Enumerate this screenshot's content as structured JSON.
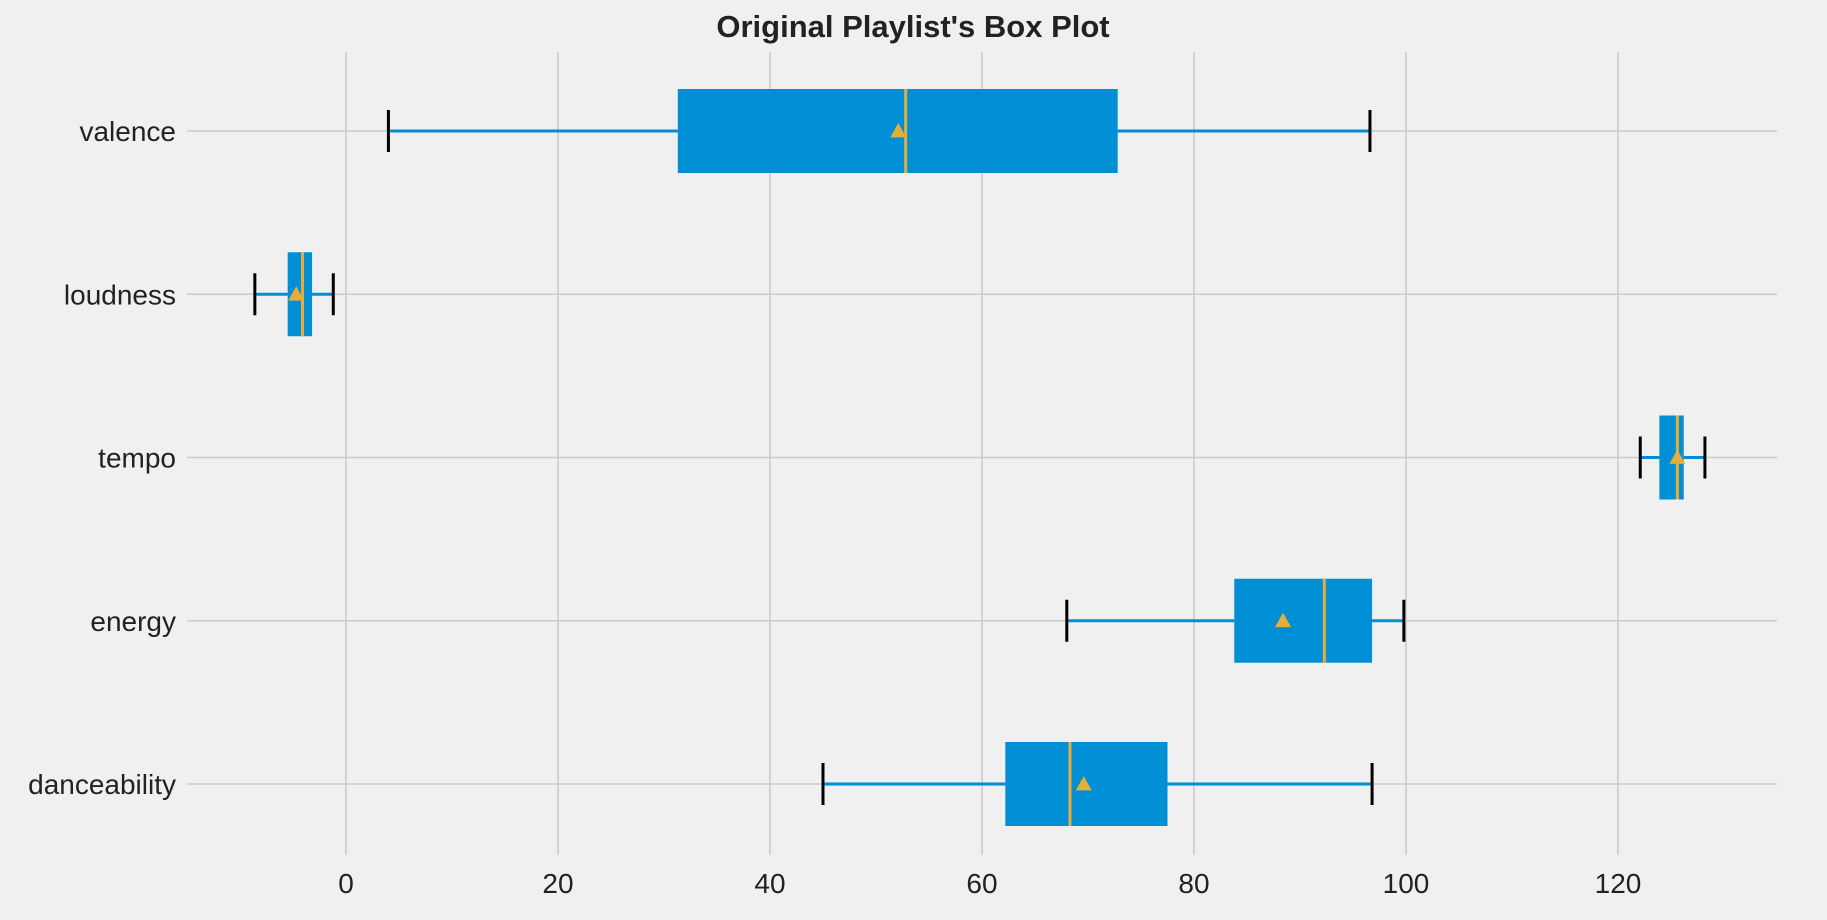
{
  "chart_data": {
    "type": "boxplot",
    "orientation": "horizontal",
    "title": "Original Playlist's Box Plot",
    "xlabel": "",
    "ylabel": "",
    "xlim": [
      -15,
      135
    ],
    "xticks": [
      0,
      20,
      40,
      60,
      80,
      100,
      120
    ],
    "grid": true,
    "categories": [
      "danceability",
      "energy",
      "tempo",
      "loudness",
      "valence"
    ],
    "boxes": [
      {
        "name": "danceability",
        "whisker_low": 45.0,
        "q1": 62.2,
        "median": 68.3,
        "q3": 77.5,
        "whisker_high": 96.8,
        "mean": 69.6
      },
      {
        "name": "energy",
        "whisker_low": 68.0,
        "q1": 83.8,
        "median": 92.3,
        "q3": 96.8,
        "whisker_high": 99.8,
        "mean": 88.4
      },
      {
        "name": "tempo",
        "whisker_low": 122.1,
        "q1": 123.9,
        "median": 125.6,
        "q3": 126.2,
        "whisker_high": 128.2,
        "mean": 125.6
      },
      {
        "name": "loudness",
        "whisker_low": -8.6,
        "q1": -5.5,
        "median": -4.1,
        "q3": -3.2,
        "whisker_high": -1.2,
        "mean": -4.7
      },
      {
        "name": "valence",
        "whisker_low": 4.0,
        "q1": 31.3,
        "median": 52.8,
        "q3": 72.8,
        "whisker_high": 96.6,
        "mean": 52.1
      }
    ]
  },
  "colors": {
    "background": "#f0f0f0",
    "grid": "#cbcbcb",
    "box_fill": "#008fd5",
    "whisker": "#008fd5",
    "cap": "#000000",
    "median": "#e5ae38",
    "mean_marker": "#e5ae38",
    "text": "#222222"
  }
}
